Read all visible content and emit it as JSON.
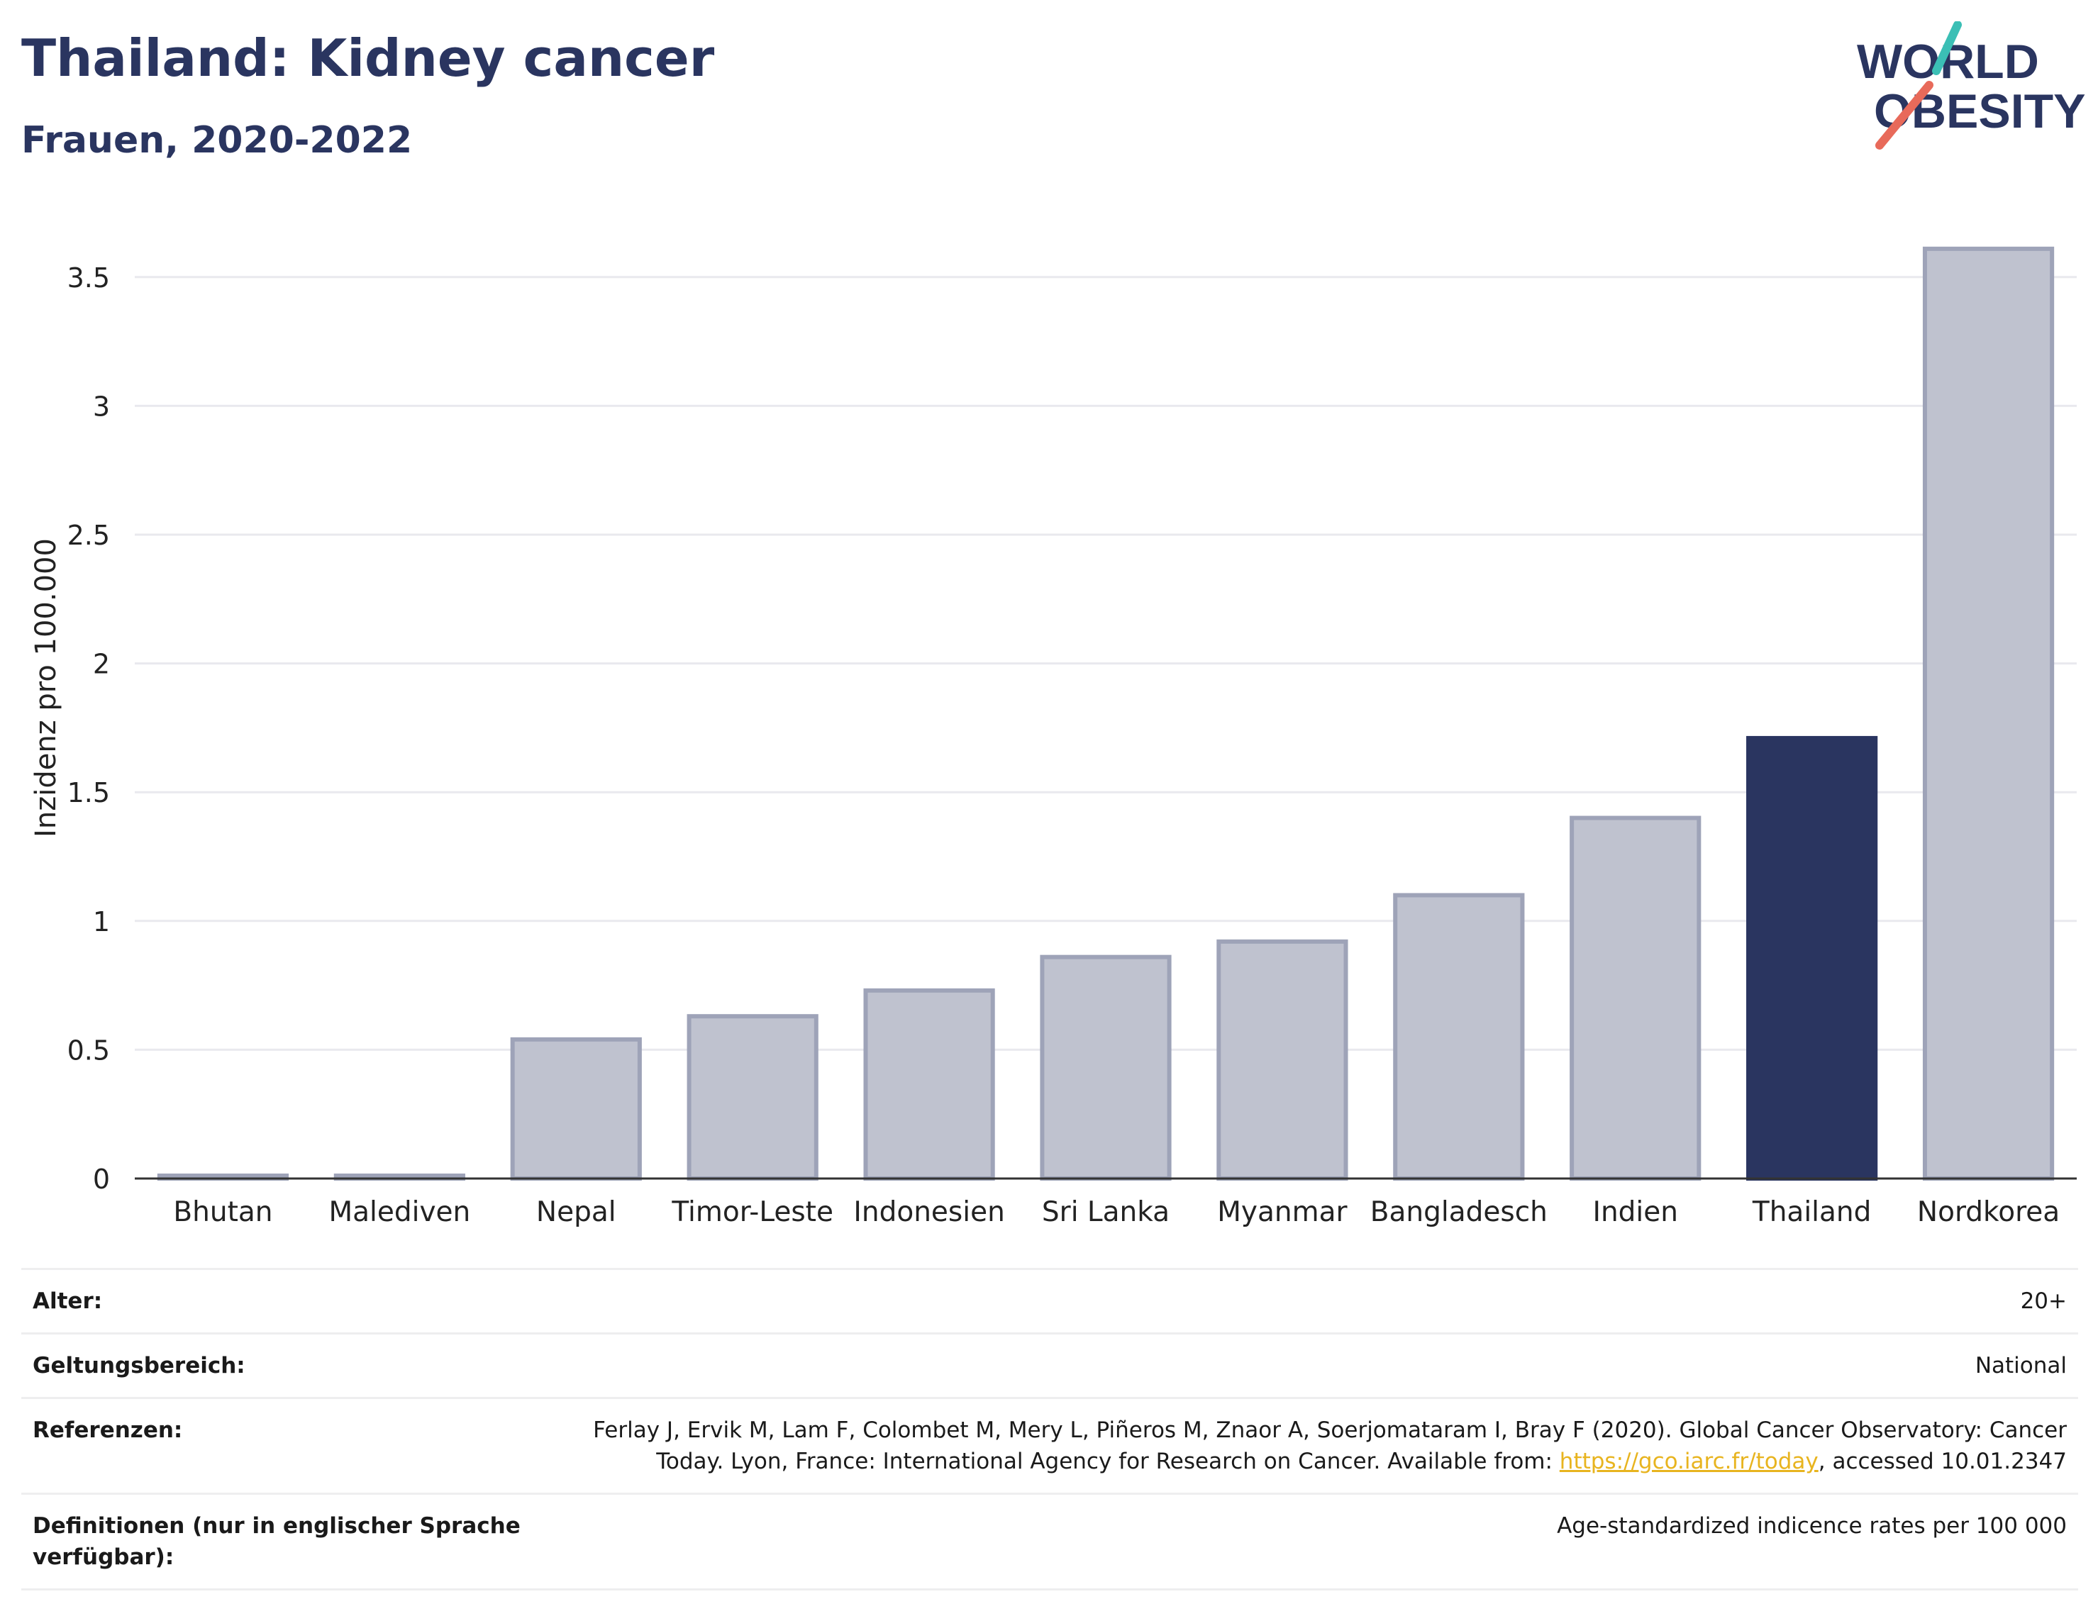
{
  "header": {
    "title": "Thailand: Kidney cancer",
    "subtitle": "Frauen, 2020-2022"
  },
  "logo": {
    "line1": "WORLD",
    "line2": "OBESITY"
  },
  "chart_data": {
    "type": "bar",
    "categories": [
      "Bhutan",
      "Malediven",
      "Nepal",
      "Timor-Leste",
      "Indonesien",
      "Sri Lanka",
      "Myanmar",
      "Bangladesch",
      "Indien",
      "Thailand",
      "Nordkorea"
    ],
    "values": [
      0.01,
      0.01,
      0.54,
      0.63,
      0.73,
      0.86,
      0.92,
      1.1,
      1.4,
      1.71,
      3.61
    ],
    "highlight": "Thailand",
    "ylabel": "Inzidenz pro 100.000",
    "xlabel": "",
    "ylim": [
      0,
      3.75
    ],
    "yticks": [
      0,
      0.5,
      1,
      1.5,
      2,
      2.5,
      3,
      3.5
    ],
    "ytick_labels": [
      "0",
      "0.5",
      "1",
      "1.5",
      "2",
      "2.5",
      "3",
      "3.5"
    ],
    "grid": true,
    "colors": {
      "bar": "#bfc2cf",
      "bar_edge": "#9ea3b8",
      "highlight": "#2a3560"
    }
  },
  "info": {
    "age_label": "Alter:",
    "age_value": "20+",
    "scope_label": "Geltungsbereich:",
    "scope_value": "National",
    "ref_label": "Referenzen:",
    "ref_text_1": "Ferlay J, Ervik M, Lam F, Colombet M, Mery L, Piñeros M, Znaor A, Soerjomataram I, Bray F (2020). Global Cancer Observatory: Cancer Today. Lyon, France: International Agency for Research on Cancer. Available from: ",
    "ref_link": "https://gco.iarc.fr/today",
    "ref_text_2": ", accessed 10.01.2347",
    "def_label": "Definitionen (nur in englischer Sprache verfügbar):",
    "def_value": "Age-standardized indicence rates per 100 000"
  }
}
